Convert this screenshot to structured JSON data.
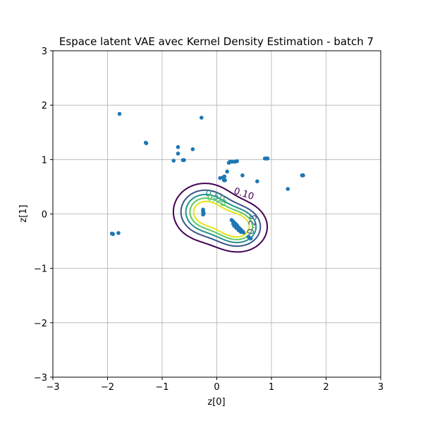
{
  "chart_data": {
    "type": "scatter",
    "title": "Espace latent VAE avec Kernel Density Estimation - batch 7",
    "xlabel": "z[0]",
    "ylabel": "z[1]",
    "xlim": [
      -3,
      3
    ],
    "ylim": [
      -3,
      3
    ],
    "xticks": [
      -3,
      -2,
      -1,
      0,
      1,
      2,
      3
    ],
    "yticks": [
      -3,
      -2,
      -1,
      0,
      1,
      2,
      3
    ],
    "xtick_labels": [
      "−3",
      "−2",
      "−1",
      "0",
      "1",
      "2",
      "3"
    ],
    "ytick_labels": [
      "−3",
      "−2",
      "−1",
      "0",
      "1",
      "2",
      "3"
    ],
    "grid": true,
    "point_color": "#1f77b4",
    "points": [
      [
        -1.78,
        1.84
      ],
      [
        -1.3,
        1.31
      ],
      [
        -1.29,
        1.3
      ],
      [
        -0.28,
        1.77
      ],
      [
        -0.71,
        1.23
      ],
      [
        -0.71,
        1.11
      ],
      [
        -0.44,
        1.19
      ],
      [
        -0.6,
        0.99
      ],
      [
        -0.62,
        0.99
      ],
      [
        -0.79,
        0.98
      ],
      [
        0.22,
        0.94
      ],
      [
        0.24,
        0.96
      ],
      [
        0.28,
        0.96
      ],
      [
        0.33,
        0.96
      ],
      [
        0.37,
        0.97
      ],
      [
        0.19,
        0.78
      ],
      [
        0.47,
        0.71
      ],
      [
        0.06,
        0.66
      ],
      [
        0.11,
        0.67
      ],
      [
        0.14,
        0.69
      ],
      [
        0.13,
        0.62
      ],
      [
        0.15,
        0.62
      ],
      [
        0.74,
        0.6
      ],
      [
        0.88,
        1.02
      ],
      [
        0.91,
        1.02
      ],
      [
        0.93,
        1.02
      ],
      [
        1.56,
        0.71
      ],
      [
        1.58,
        0.71
      ],
      [
        1.3,
        0.46
      ],
      [
        -0.25,
        0.08
      ],
      [
        -0.25,
        0.05
      ],
      [
        -0.25,
        0.03
      ],
      [
        -0.24,
        0.01
      ],
      [
        -0.25,
        -0.01
      ],
      [
        0.27,
        -0.11
      ],
      [
        0.29,
        -0.13
      ],
      [
        0.31,
        -0.15
      ],
      [
        0.33,
        -0.17
      ],
      [
        0.35,
        -0.19
      ],
      [
        0.37,
        -0.21
      ],
      [
        0.39,
        -0.24
      ],
      [
        0.41,
        -0.26
      ],
      [
        0.43,
        -0.28
      ],
      [
        0.45,
        -0.3
      ],
      [
        0.47,
        -0.32
      ],
      [
        0.49,
        -0.34
      ],
      [
        0.3,
        -0.18
      ],
      [
        0.32,
        -0.22
      ],
      [
        0.36,
        -0.26
      ],
      [
        0.4,
        -0.3
      ],
      [
        0.44,
        -0.33
      ],
      [
        0.58,
        -0.42
      ],
      [
        0.62,
        -0.45
      ],
      [
        -1.92,
        -0.36
      ],
      [
        -1.9,
        -0.37
      ],
      [
        -1.8,
        -0.35
      ]
    ],
    "contour_levels": [
      {
        "level": "0.10",
        "color": "#440154",
        "label": "0.10"
      },
      {
        "level": "0.25",
        "color": "#3b528b",
        "label": "0.25"
      },
      {
        "level": "0.50",
        "color": "#21918c",
        "label": "0.50"
      },
      {
        "level": "0.75",
        "color": "#5ec962",
        "label": "0.75"
      },
      {
        "level": "0.90",
        "color": "#e3e418",
        "label": ""
      }
    ]
  }
}
